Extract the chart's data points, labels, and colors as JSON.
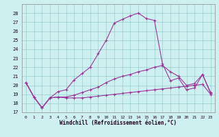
{
  "title": "",
  "xlabel": "Windchill (Refroidissement éolien,°C)",
  "bg_color": "#cff0f0",
  "grid_color": "#99cccc",
  "line_color": "#993399",
  "xlim": [
    -0.5,
    23.5
  ],
  "ylim": [
    17,
    29
  ],
  "yticks": [
    17,
    18,
    19,
    20,
    21,
    22,
    23,
    24,
    25,
    26,
    27,
    28
  ],
  "xticks": [
    0,
    1,
    2,
    3,
    4,
    5,
    6,
    7,
    8,
    9,
    10,
    11,
    12,
    13,
    14,
    15,
    16,
    17,
    18,
    19,
    20,
    21,
    22,
    23
  ],
  "series": [
    [
      20.3,
      18.7,
      17.5,
      18.6,
      18.7,
      18.6,
      18.6,
      18.6,
      18.7,
      18.8,
      18.9,
      19.0,
      19.1,
      19.2,
      19.3,
      19.4,
      19.5,
      19.6,
      19.7,
      19.8,
      19.9,
      20.0,
      20.1,
      19.0
    ],
    [
      20.3,
      18.7,
      17.5,
      18.6,
      18.7,
      18.7,
      18.9,
      19.2,
      19.5,
      19.8,
      20.3,
      20.7,
      21.0,
      21.2,
      21.5,
      21.7,
      22.0,
      22.2,
      21.5,
      21.0,
      20.0,
      20.2,
      21.2,
      19.2
    ],
    [
      20.3,
      18.7,
      17.5,
      18.6,
      19.3,
      19.5,
      20.6,
      21.3,
      22.0,
      23.5,
      25.0,
      26.9,
      27.3,
      27.7,
      28.0,
      27.4,
      27.2,
      22.4,
      20.5,
      20.8,
      19.5,
      19.7,
      21.2,
      19.1
    ]
  ]
}
